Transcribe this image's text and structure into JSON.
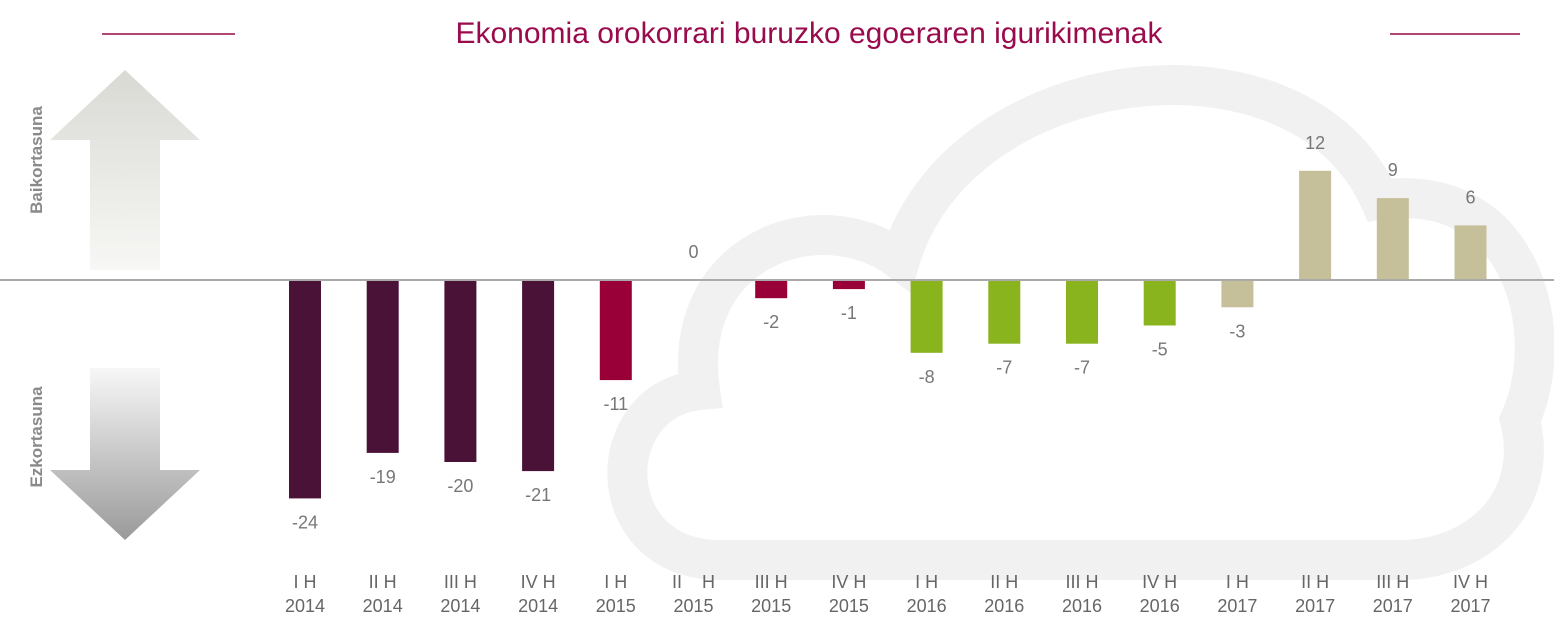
{
  "chart_data": {
    "type": "bar",
    "title": "Ekonomia orokorrari buruzko egoeraren igurikimenak",
    "upper_label": "Baikortasuna",
    "lower_label": "Ezkortasuna",
    "categories": [
      "I H\n2014",
      "II H\n2014",
      "III H\n2014",
      "IV H\n2014",
      "I H\n2015",
      "II    H\n2015",
      "III H\n2015",
      "IV H\n2015",
      "I H\n2016",
      "II H\n2016",
      "III H\n2016",
      "IV H\n2016",
      "I H\n2017",
      "II H\n2017",
      "III H\n2017",
      "IV H\n2017"
    ],
    "values": [
      -24,
      -19,
      -20,
      -21,
      -11,
      0,
      -2,
      -1,
      -8,
      -7,
      -7,
      -5,
      -3,
      12,
      9,
      6
    ],
    "colors": [
      "#4b1238",
      "#4b1238",
      "#4b1238",
      "#4b1238",
      "#990038",
      "#990038",
      "#990038",
      "#990038",
      "#8ab41e",
      "#8ab41e",
      "#8ab41e",
      "#8ab41e",
      "#c5bf9a",
      "#c5bf9a",
      "#c5bf9a",
      "#c5bf9a"
    ],
    "ylim": [
      -25,
      24
    ]
  }
}
